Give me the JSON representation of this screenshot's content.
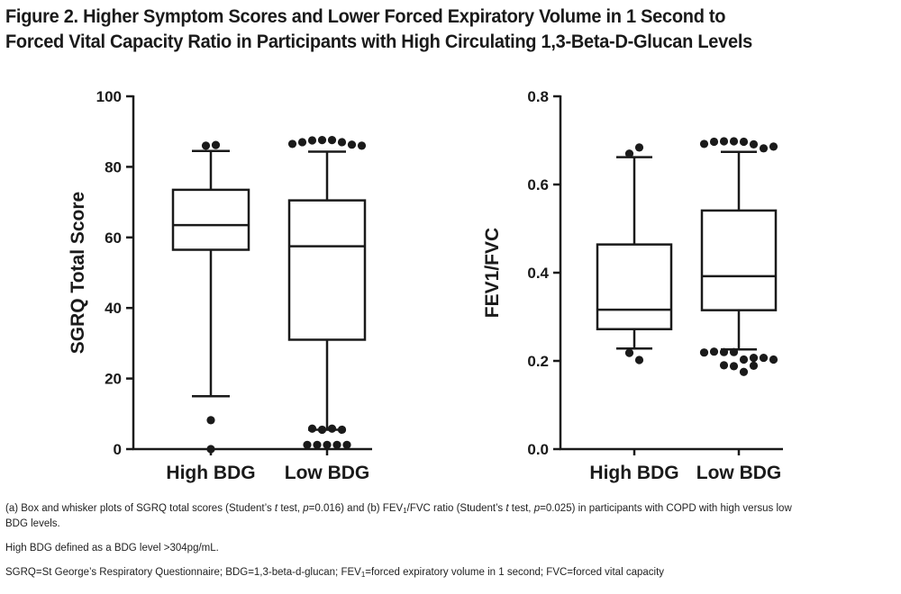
{
  "title": {
    "line1": "Figure 2. Higher Symptom Scores and Lower Forced Expiratory Volume in 1 Second to",
    "line2": "Forced Vital Capacity Ratio in Participants with High Circulating 1,3-Beta-D-Glucan Levels"
  },
  "chart_data": [
    {
      "type": "box",
      "title": "",
      "xlabel": "",
      "ylabel": "SGRQ Total Score",
      "ylim": [
        0,
        100
      ],
      "yticks": [
        "0",
        "20",
        "40",
        "60",
        "80",
        "100"
      ],
      "ytick_values": [
        0,
        20,
        40,
        60,
        80,
        100
      ],
      "categories": [
        "High BDG",
        "Low BDG"
      ],
      "boxes": [
        {
          "whisker_low": 15,
          "q1": 56.5,
          "median": 63.5,
          "q3": 73.5,
          "whisker_high": 84.5,
          "outliers": [
            86,
            86.2,
            8.2,
            0
          ]
        },
        {
          "whisker_low": 5.5,
          "q1": 31,
          "median": 57.5,
          "q3": 70.5,
          "whisker_high": 84.3,
          "outliers": [
            86.5,
            87,
            87.5,
            87.6,
            87.6,
            87,
            86.3,
            86,
            5.8,
            5.5,
            5.8,
            5.5,
            1.2,
            1.2,
            1.2,
            1.2,
            1.2
          ]
        }
      ]
    },
    {
      "type": "box",
      "title": "",
      "xlabel": "",
      "ylabel": "FEV1/FVC",
      "ylim": [
        0,
        0.8
      ],
      "yticks": [
        "0.0",
        "0.2",
        "0.4",
        "0.6",
        "0.8"
      ],
      "ytick_values": [
        0,
        0.2,
        0.4,
        0.6,
        0.8
      ],
      "categories": [
        "High BDG",
        "Low BDG"
      ],
      "boxes": [
        {
          "whisker_low": 0.228,
          "q1": 0.272,
          "median": 0.316,
          "q3": 0.464,
          "whisker_high": 0.662,
          "outliers": [
            0.67,
            0.684,
            0.218,
            0.202
          ]
        },
        {
          "whisker_low": 0.226,
          "q1": 0.315,
          "median": 0.392,
          "q3": 0.541,
          "whisker_high": 0.674,
          "outliers": [
            0.692,
            0.697,
            0.698,
            0.698,
            0.697,
            0.691,
            0.682,
            0.686,
            0.219,
            0.221,
            0.22,
            0.22,
            0.203,
            0.207,
            0.207,
            0.203,
            0.19,
            0.188,
            0.175,
            0.189
          ]
        }
      ]
    }
  ],
  "notes": {
    "line1_a": "(a) Box and whisker plots of SGRQ total scores (Student’s ",
    "line1_t1": "t",
    "line1_b": " test, ",
    "line1_p1": "p",
    "line1_c": "=0.016)  and (b) FEV",
    "line1_sub": "1",
    "line1_d": "/FVC ratio (Student’s ",
    "line1_t2": "t",
    "line1_e": " test, ",
    "line1_p2": "p",
    "line1_f": "=0.025) in participants with COPD with high versus low BDG levels.",
    "line2": "High BDG defined as a BDG level >304pg/mL.",
    "line3_a": "SGRQ=St George’s Respiratory Questionnaire; BDG=1,3-beta-d-glucan; FEV",
    "line3_sub": "1",
    "line3_b": "=forced expiratory volume in 1 second; FVC=forced vital capacity"
  }
}
